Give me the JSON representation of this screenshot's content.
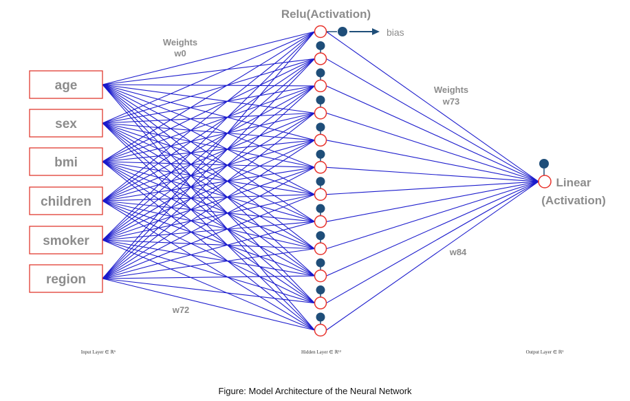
{
  "title": "Relu(Activation)",
  "bias_label": "bias",
  "inputs": [
    "age",
    "sex",
    "bmi",
    "children",
    "smoker",
    "region"
  ],
  "hidden_count": 12,
  "weights_top_left": [
    "Weights",
    "w0"
  ],
  "weights_top_right": [
    "Weights",
    "w73"
  ],
  "weight_bottom_left": "w72",
  "weight_bottom_right": "w84",
  "output_label": [
    "Linear",
    "(Activation)"
  ],
  "layer_captions": {
    "input": "Input Layer ∈ ℝ⁶",
    "hidden": "Hidden Layer ∈ ℝ¹²",
    "output": "Output Layer ∈ ℝ¹"
  },
  "caption": "Figure: Model Architecture of the Neural Network",
  "colors": {
    "edge": "#1a1acc",
    "node_border": "#e8322b",
    "bias": "#1f4e79",
    "box_border": "#e03a2f",
    "text": "#8c8c8c"
  }
}
